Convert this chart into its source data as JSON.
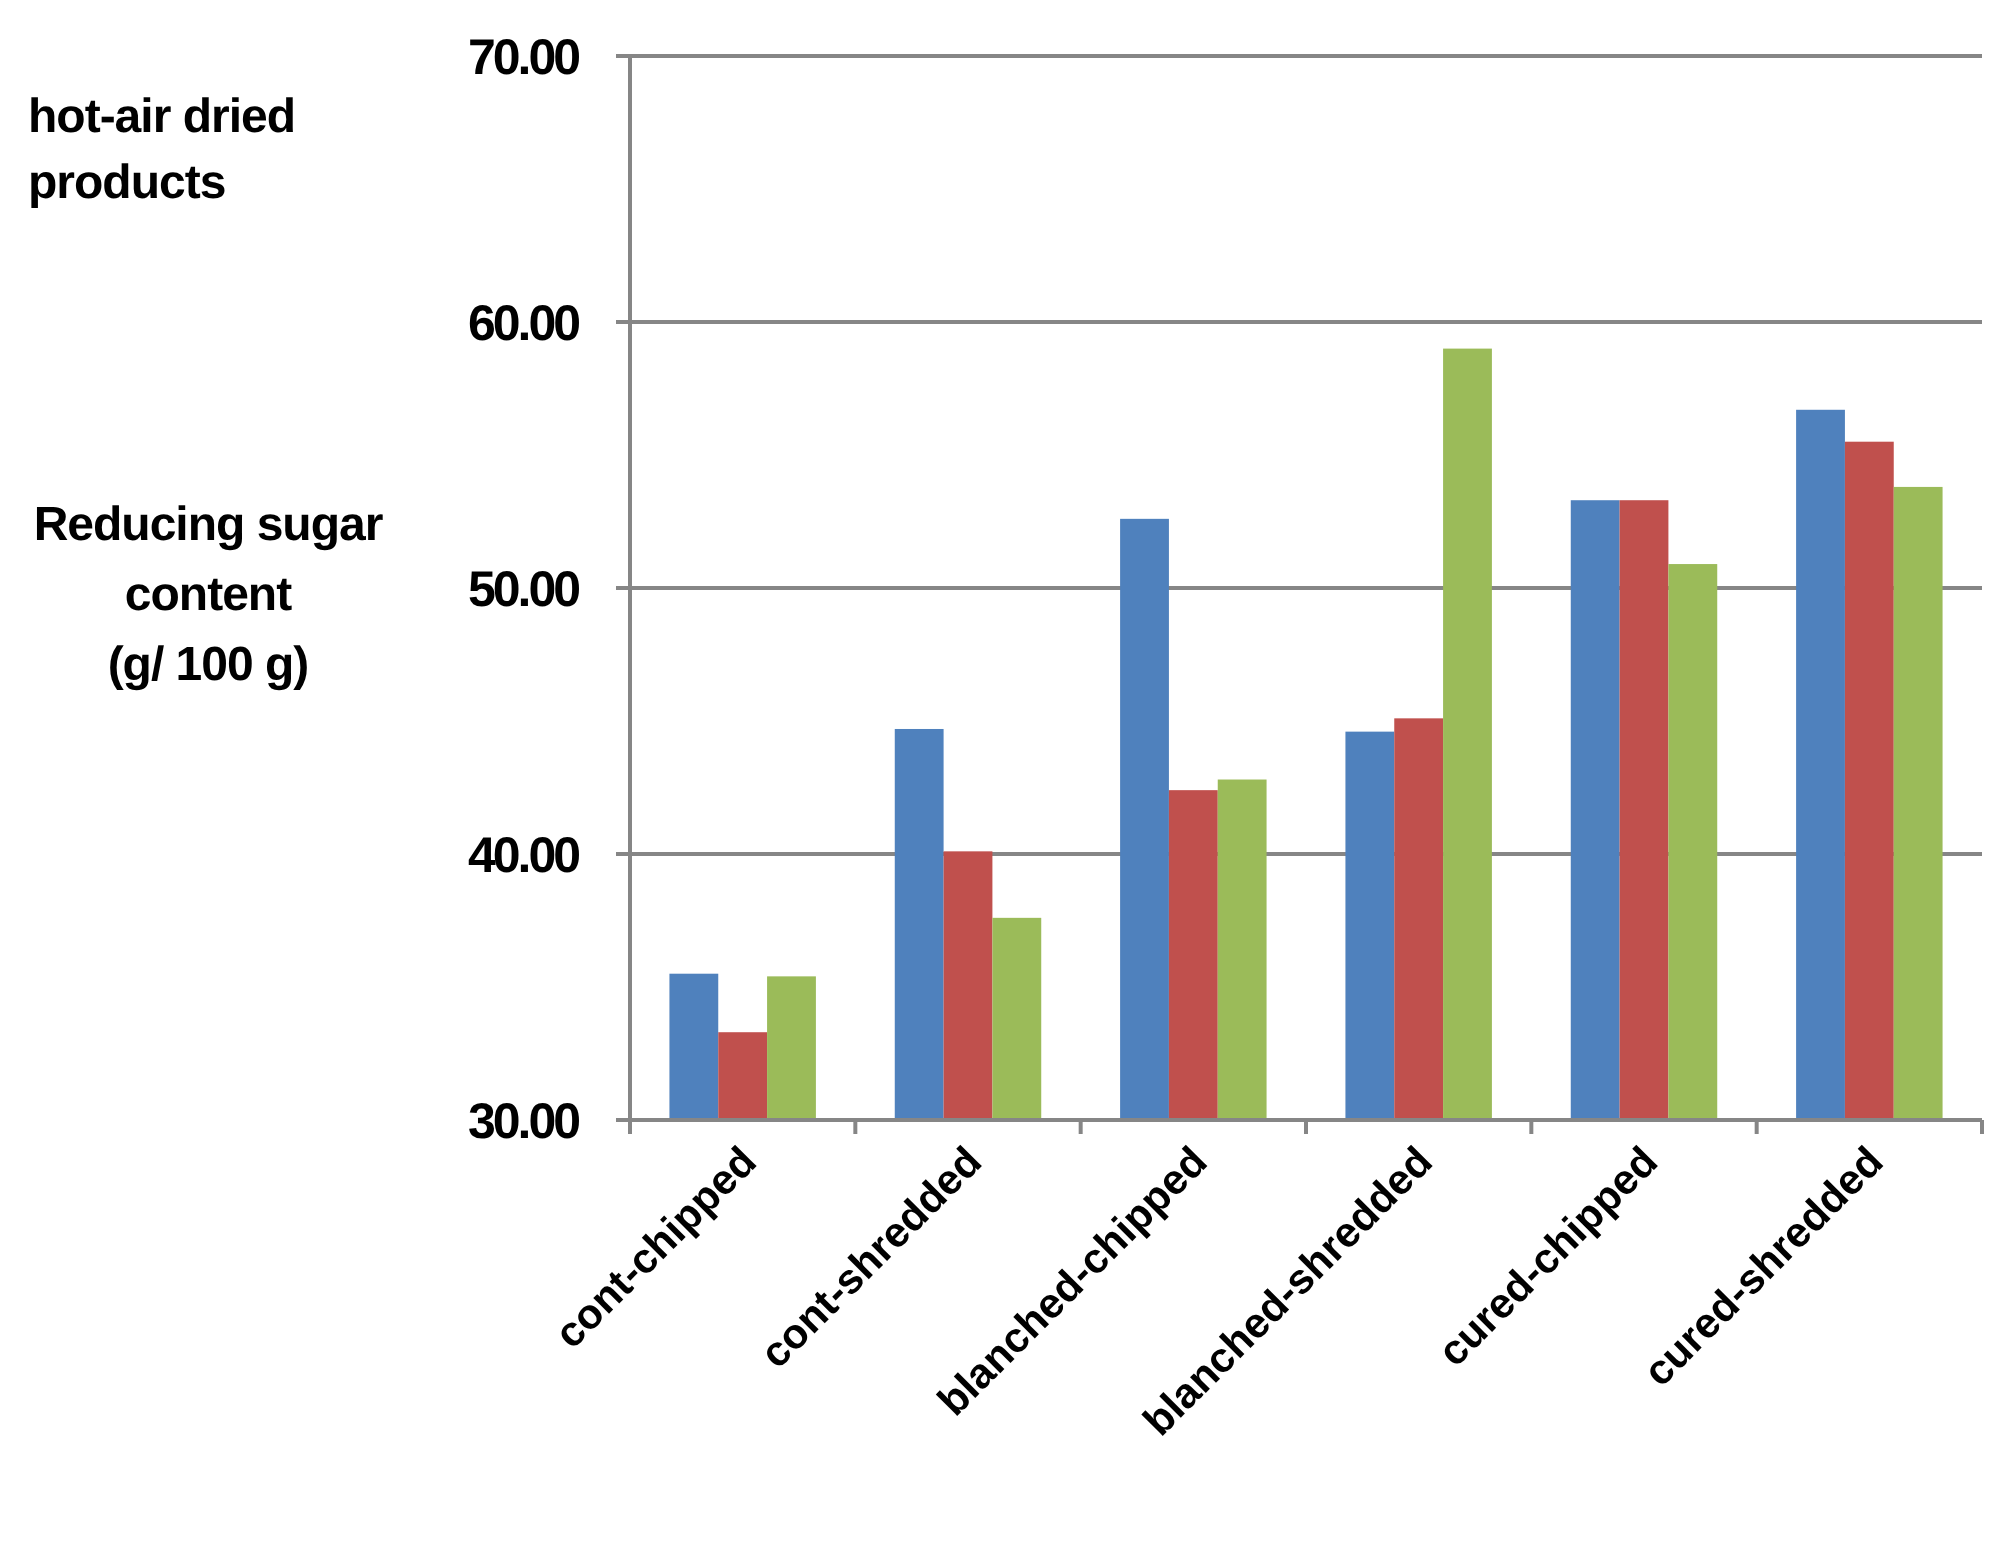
{
  "chart_data": {
    "type": "bar",
    "title": "hot-air dried products",
    "ylabel": "Reducing sugar content (g/ 100 g)",
    "categories": [
      "cont-chipped",
      "cont-shredded",
      "blanched-chipped",
      "blanched-shredded",
      "cured-chipped",
      "cured-shredded"
    ],
    "series": [
      {
        "color": "#4f81bd",
        "values": [
          35.5,
          44.7,
          52.6,
          44.6,
          53.3,
          56.7
        ]
      },
      {
        "color": "#c0504d",
        "values": [
          33.3,
          40.1,
          42.4,
          45.1,
          53.3,
          55.5
        ]
      },
      {
        "color": "#9bbb59",
        "values": [
          35.4,
          37.6,
          42.8,
          59.0,
          50.9,
          53.8
        ]
      }
    ],
    "ylim": [
      30,
      70
    ],
    "yticks": [
      {
        "value": 30,
        "label": "30.00"
      },
      {
        "value": 40,
        "label": "40.00"
      },
      {
        "value": 50,
        "label": "50.00"
      },
      {
        "value": 60,
        "label": "60.00"
      },
      {
        "value": 70,
        "label": "70.00"
      }
    ],
    "grid": "y"
  }
}
